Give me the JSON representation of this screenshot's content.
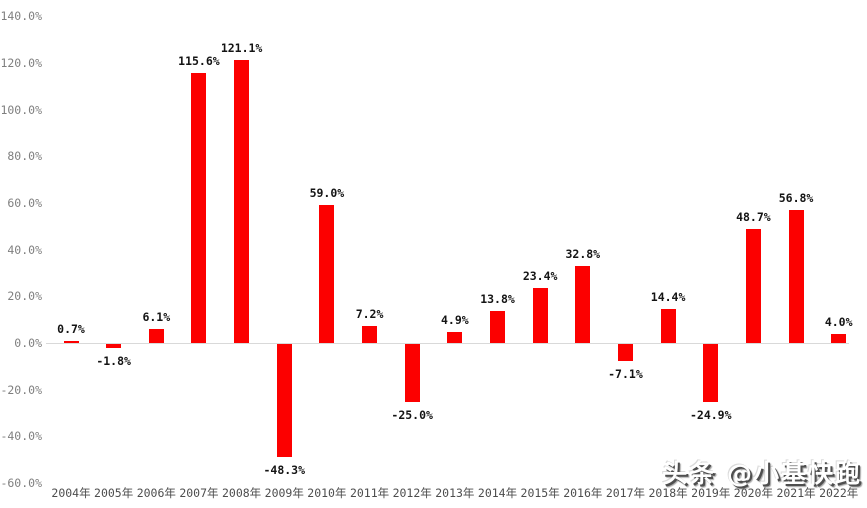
{
  "watermark": "头条 @小基快跑",
  "colors": {
    "bar": "#fc0000",
    "axis_line": "#d9d9d9",
    "ytick_text": "#7f7f7f",
    "xtick_text": "#4d4d4d",
    "value_label_text": "#141414",
    "background": "#ffffff",
    "watermark_fill": "#ffffff",
    "watermark_shadow": "#4f4f4f"
  },
  "chart_data": {
    "type": "bar",
    "title": "",
    "xlabel": "",
    "ylabel": "",
    "categories": [
      "2004年",
      "2005年",
      "2006年",
      "2007年",
      "2008年",
      "2009年",
      "2010年",
      "2011年",
      "2012年",
      "2013年",
      "2014年",
      "2015年",
      "2016年",
      "2017年",
      "2018年",
      "2019年",
      "2020年",
      "2021年",
      "2022年"
    ],
    "values": [
      0.7,
      -1.8,
      6.1,
      115.6,
      121.1,
      -48.3,
      59.0,
      7.2,
      -25.0,
      4.9,
      13.8,
      23.4,
      32.8,
      -7.1,
      14.4,
      -24.9,
      48.7,
      56.8,
      4.0
    ],
    "value_labels": [
      "0.7%",
      "-1.8%",
      "6.1%",
      "115.6%",
      "121.1%",
      "-48.3%",
      "59.0%",
      "7.2%",
      "-25.0%",
      "4.9%",
      "13.8%",
      "23.4%",
      "32.8%",
      "-7.1%",
      "14.4%",
      "-24.9%",
      "48.7%",
      "56.8%",
      "4.0%"
    ],
    "yticks": [
      "140.0%",
      "120.0%",
      "100.0%",
      "80.0%",
      "60.0%",
      "40.0%",
      "20.0%",
      "0.0%",
      "-20.0%",
      "-40.0%",
      "-60.0%"
    ],
    "ylim": [
      -60,
      140
    ],
    "ytick_step": 20,
    "grid": false,
    "legend": null,
    "series_color": "#fc0000",
    "value_labels_shown": true
  }
}
